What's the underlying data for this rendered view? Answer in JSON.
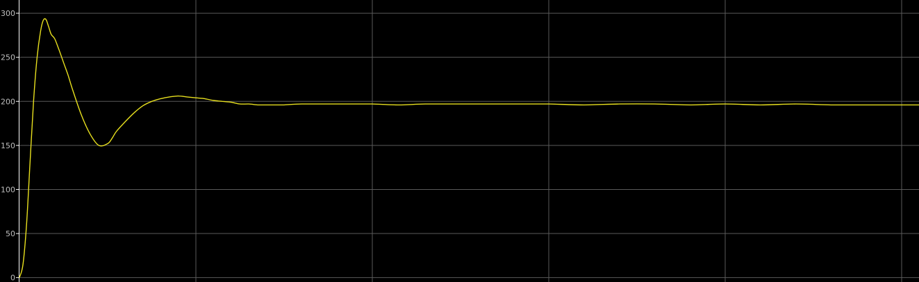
{
  "chart_data": {
    "type": "line",
    "title": "",
    "xlabel": "",
    "ylabel": "",
    "xlim": [
      0,
      10
    ],
    "ylim": [
      -5,
      315
    ],
    "grid": true,
    "y_ticks": [
      0,
      50,
      100,
      150,
      200,
      250,
      300
    ],
    "x_gridlines": [
      2,
      4,
      6,
      8,
      10
    ],
    "colors": {
      "background": "#000000",
      "grid": "#5a5a5a",
      "axis": "#ffffff",
      "tick_label": "#bfbfbf",
      "line": "#e8e01e"
    },
    "series": [
      {
        "color": "#e8e01e",
        "x": [
          0,
          0.04,
          0.08,
          0.12,
          0.16,
          0.2,
          0.24,
          0.27,
          0.3,
          0.33,
          0.36,
          0.4,
          0.45,
          0.5,
          0.55,
          0.6,
          0.7,
          0.8,
          0.9,
          1.0,
          1.05,
          1.1,
          1.2,
          1.3,
          1.4,
          1.5,
          1.6,
          1.7,
          1.8,
          1.9,
          2.0,
          2.1,
          2.2,
          2.3,
          2.4,
          2.5,
          2.6,
          2.7,
          2.8,
          2.9,
          3.0,
          3.2,
          3.5,
          3.8,
          4.0,
          4.3,
          4.6,
          5.0,
          5.4,
          5.8,
          6.0,
          6.4,
          6.8,
          7.2,
          7.6,
          8.0,
          8.4,
          8.8,
          9.2,
          9.6,
          10.0,
          10.41
        ],
        "y": [
          0,
          15,
          60,
          130,
          200,
          250,
          280,
          292,
          293,
          285,
          276,
          271,
          258,
          244,
          230,
          214,
          185,
          163,
          150,
          152,
          158,
          166,
          177,
          187,
          195,
          200,
          203,
          205,
          206,
          205,
          204,
          203,
          201,
          200,
          199,
          197,
          197,
          196,
          196,
          196,
          196,
          197,
          197,
          197,
          197,
          196,
          197,
          197,
          197,
          197,
          197,
          196,
          197,
          197,
          196,
          197,
          196,
          197,
          196,
          196,
          196,
          196
        ]
      }
    ]
  }
}
